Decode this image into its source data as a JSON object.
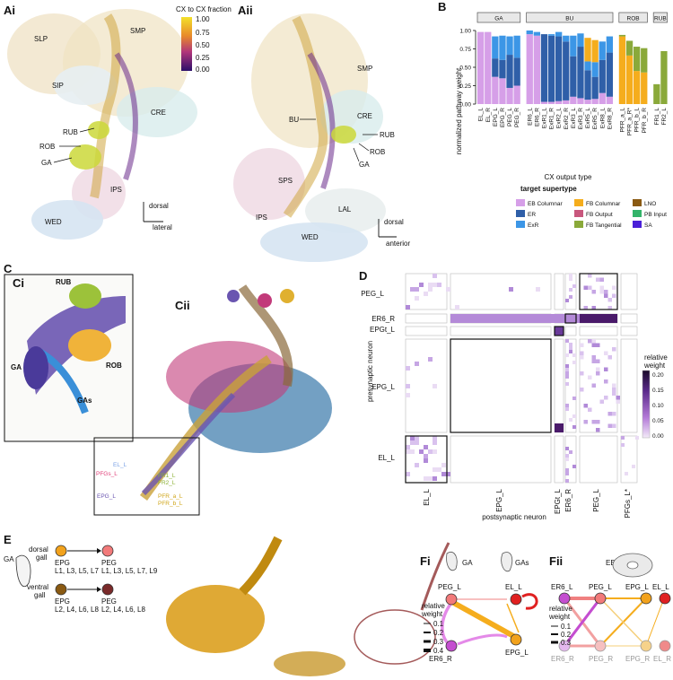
{
  "panels": {
    "Ai": "Ai",
    "Aii": "Aii",
    "B": "B",
    "Ci": "Ci",
    "Cii": "Cii",
    "D": "D",
    "E": "E",
    "Fi": "Fi",
    "Fii": "Fii"
  },
  "panelA": {
    "colorbar_title": "CX to CX fraction",
    "colorbar_ticks": [
      "1.00",
      "0.75",
      "0.50",
      "0.25",
      "0.00"
    ],
    "Ai_regions": [
      "SLP",
      "SMP",
      "SIP",
      "CRE",
      "RUB",
      "ROB",
      "GA",
      "IPS",
      "WED"
    ],
    "Aii_regions": [
      "SMP",
      "CRE",
      "BU",
      "RUB",
      "ROB",
      "GA",
      "SPS",
      "LAL",
      "IPS",
      "WED"
    ],
    "Ai_axes": {
      "vertical": "dorsal",
      "horizontal": "lateral"
    },
    "Aii_axes": {
      "vertical": "dorsal",
      "horizontal": "anterior"
    }
  },
  "chart_data": {
    "type": "bar",
    "stacked": true,
    "ylabel": "normalized pathway weight",
    "xlabel": "CX output type",
    "yticks": [
      "0.00",
      "0.25",
      "0.50",
      "0.75",
      "1.00"
    ],
    "ylim": [
      0,
      1
    ],
    "groups": [
      "GA",
      "BU",
      "ROB",
      "RUB"
    ],
    "categories": [
      {
        "name": "EL_L",
        "group": "GA"
      },
      {
        "name": "EL_R",
        "group": "GA"
      },
      {
        "name": "EPG_L",
        "group": "GA"
      },
      {
        "name": "EPG_R",
        "group": "GA"
      },
      {
        "name": "PEG_L",
        "group": "GA"
      },
      {
        "name": "PEG_R",
        "group": "GA"
      },
      {
        "name": "ER6_L",
        "group": "BU"
      },
      {
        "name": "ER6_R",
        "group": "BU"
      },
      {
        "name": "ExR1_L",
        "group": "BU"
      },
      {
        "name": "ExR1_R",
        "group": "BU"
      },
      {
        "name": "ExR2_L",
        "group": "BU"
      },
      {
        "name": "ExR2_R",
        "group": "BU"
      },
      {
        "name": "ExR3_L",
        "group": "BU"
      },
      {
        "name": "ExR3_R",
        "group": "BU"
      },
      {
        "name": "ExR5_L",
        "group": "BU"
      },
      {
        "name": "ExR5_R",
        "group": "BU"
      },
      {
        "name": "ExR8_L",
        "group": "BU"
      },
      {
        "name": "ExR8_R",
        "group": "BU"
      },
      {
        "name": "PFR_a_L",
        "group": "ROB"
      },
      {
        "name": "PFR_a_R*",
        "group": "ROB"
      },
      {
        "name": "PFR_b_L",
        "group": "ROB"
      },
      {
        "name": "PFR_b_R",
        "group": "ROB"
      },
      {
        "name": "FR1_L",
        "group": "RUB"
      },
      {
        "name": "FR2_L",
        "group": "RUB"
      }
    ],
    "series": [
      {
        "name": "EB Columnar",
        "color": "#d69fe8",
        "values": [
          0.98,
          0.98,
          0.37,
          0.35,
          0.22,
          0.25,
          0.95,
          0.93,
          0.03,
          0.03,
          0.04,
          0.05,
          0.1,
          0.08,
          0.06,
          0.07,
          0.15,
          0.1,
          0,
          0,
          0,
          0,
          0,
          0
        ]
      },
      {
        "name": "ER",
        "color": "#2f5fa8",
        "values": [
          0,
          0,
          0.25,
          0.25,
          0.45,
          0.38,
          0,
          0,
          0.92,
          0.9,
          0.88,
          0.8,
          0.55,
          0.7,
          0.4,
          0.3,
          0.45,
          0.6,
          0,
          0,
          0,
          0,
          0,
          0
        ]
      },
      {
        "name": "ExR",
        "color": "#3c96e6",
        "values": [
          0,
          0,
          0.3,
          0.33,
          0.25,
          0.3,
          0.05,
          0.05,
          0,
          0.02,
          0.06,
          0.08,
          0.28,
          0.18,
          0.12,
          0.2,
          0.25,
          0.22,
          0,
          0,
          0,
          0,
          0,
          0
        ]
      },
      {
        "name": "FB Columnar",
        "color": "#f5ad1d",
        "values": [
          0,
          0,
          0,
          0,
          0,
          0,
          0,
          0,
          0,
          0,
          0,
          0,
          0,
          0,
          0.32,
          0.3,
          0,
          0,
          0.92,
          0.66,
          0.45,
          0.43,
          0,
          0
        ]
      },
      {
        "name": "FB Output",
        "color": "#c8577d",
        "values": [
          0,
          0,
          0,
          0,
          0,
          0,
          0,
          0,
          0,
          0,
          0,
          0,
          0,
          0,
          0,
          0,
          0,
          0,
          0,
          0,
          0,
          0,
          0,
          0
        ]
      },
      {
        "name": "FB Tangential",
        "color": "#8aa93a",
        "values": [
          0,
          0,
          0,
          0,
          0,
          0,
          0,
          0,
          0,
          0,
          0,
          0,
          0,
          0,
          0,
          0,
          0,
          0,
          0.02,
          0.2,
          0.33,
          0.33,
          0.27,
          0.72
        ]
      },
      {
        "name": "LNO",
        "color": "#8a5a12",
        "values": [
          0,
          0,
          0,
          0,
          0,
          0,
          0,
          0,
          0,
          0,
          0,
          0,
          0,
          0,
          0,
          0,
          0,
          0,
          0,
          0,
          0,
          0,
          0,
          0
        ]
      },
      {
        "name": "PB Input",
        "color": "#33b46a",
        "values": [
          0,
          0,
          0,
          0,
          0,
          0,
          0,
          0,
          0,
          0,
          0,
          0,
          0,
          0,
          0,
          0,
          0,
          0,
          0,
          0,
          0,
          0,
          0,
          0
        ]
      },
      {
        "name": "SA",
        "color": "#4a20d8",
        "values": [
          0,
          0,
          0,
          0,
          0,
          0,
          0,
          0,
          0,
          0,
          0,
          0,
          0,
          0,
          0,
          0,
          0,
          0,
          0,
          0,
          0,
          0,
          0,
          0
        ]
      }
    ],
    "legend_title": "target supertype"
  },
  "panelC": {
    "Ci_labels": [
      "RUB",
      "GA",
      "ROB",
      "GAs"
    ],
    "Cii_labels": [
      {
        "text": "EL_L",
        "color": "#7aa2e6"
      },
      {
        "text": "PFGs_L",
        "color": "#e0417a"
      },
      {
        "text": "EPG_L",
        "color": "#6a55b0"
      },
      {
        "text": "FR1_L",
        "color": "#8ab033"
      },
      {
        "text": "FR2_L",
        "color": "#8ab033"
      },
      {
        "text": "PFR_a_L",
        "color": "#cfa416"
      },
      {
        "text": "PFR_b_L",
        "color": "#cfa416"
      }
    ]
  },
  "panelD": {
    "row_labels": [
      "PEG_L",
      "ER6_R",
      "EPGt_L",
      "EPG_L",
      "EL_L"
    ],
    "col_labels": [
      "EL_L",
      "EPG_L",
      "EPGt_L",
      "ER6_R",
      "PEG_L",
      "PFGs_L*"
    ],
    "ylabel": "presynaptic neuron",
    "xlabel": "postsynaptic neuron",
    "cbar_title": "relative weight",
    "cbar_ticks": [
      "0.20",
      "0.15",
      "0.10",
      "0.05",
      "0.00"
    ]
  },
  "panelE": {
    "side_labels": [
      "GA",
      "dorsal gall",
      "ventral gall"
    ],
    "dorsal_pre": "EPG",
    "dorsal_pre_sub": "L1, L3, L5, L7",
    "dorsal_post": "PEG",
    "dorsal_post_sub": "L1, L3, L5, L7, L9",
    "ventral_pre": "EPG",
    "ventral_pre_sub": "L2, L4, L6, L8",
    "ventral_post": "PEG",
    "ventral_post_sub": "L2, L4, L6, L8"
  },
  "panelF": {
    "Fi_icons": [
      "GA",
      "GAs"
    ],
    "Fi_nodes": [
      "PEG_L",
      "EL_L",
      "ER6_R",
      "EPG_L"
    ],
    "legend_title": "relative weight",
    "Fi_legend": [
      "0.1",
      "0.2",
      "0.3",
      "0.4"
    ],
    "Fii_icon": "EB",
    "Fii_top_nodes": [
      "ER6_L",
      "PEG_L",
      "EPG_L",
      "EL_L"
    ],
    "Fii_bottom_nodes": [
      "ER6_R",
      "PEG_R",
      "EPG_R",
      "EL_R"
    ],
    "Fii_legend": [
      "0.1",
      "0.2",
      "0.3"
    ]
  }
}
